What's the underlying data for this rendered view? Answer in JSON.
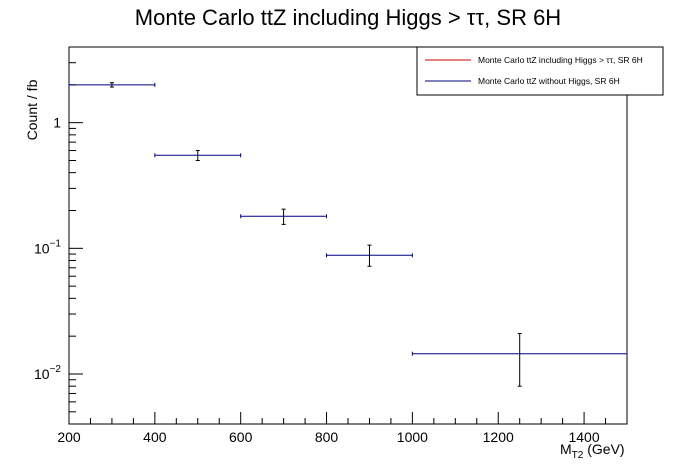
{
  "chart_data": {
    "type": "scatter",
    "title": "Monte Carlo ttZ including Higgs > ττ, SR 6H",
    "xlabel": "M",
    "xlabel_sub": "T2",
    "xlabel_unit": " (GeV)",
    "ylabel": "Count / fb",
    "xlim": [
      200,
      1500
    ],
    "ylim": [
      0.004,
      4
    ],
    "yscale": "log",
    "x_ticks": [
      200,
      400,
      600,
      800,
      1000,
      1200,
      1400
    ],
    "y_ticks": [
      {
        "value": 1,
        "label": "1",
        "exp": ""
      },
      {
        "value": 0.1,
        "label": "10",
        "exp": "−1"
      },
      {
        "value": 0.01,
        "label": "10",
        "exp": "−2"
      }
    ],
    "grid": false,
    "legend_position": "top-right",
    "series": [
      {
        "name": "Monte Carlo ttZ including Higgs > ττ, SR 6H",
        "color": "#cc0000",
        "points": []
      },
      {
        "name": "Monte Carlo ttZ without Higgs, SR 6H",
        "color": "#000080",
        "points": [
          {
            "x": 300,
            "xlo": 200,
            "xhi": 400,
            "y": 2.0,
            "ylo": 1.92,
            "yhi": 2.08
          },
          {
            "x": 500,
            "xlo": 400,
            "xhi": 600,
            "y": 0.55,
            "ylo": 0.5,
            "yhi": 0.6
          },
          {
            "x": 700,
            "xlo": 600,
            "xhi": 800,
            "y": 0.18,
            "ylo": 0.155,
            "yhi": 0.205
          },
          {
            "x": 900,
            "xlo": 800,
            "xhi": 1000,
            "y": 0.088,
            "ylo": 0.072,
            "yhi": 0.106
          },
          {
            "x": 1250,
            "xlo": 1000,
            "xhi": 1500,
            "y": 0.0145,
            "ylo": 0.008,
            "yhi": 0.021
          }
        ]
      }
    ]
  }
}
